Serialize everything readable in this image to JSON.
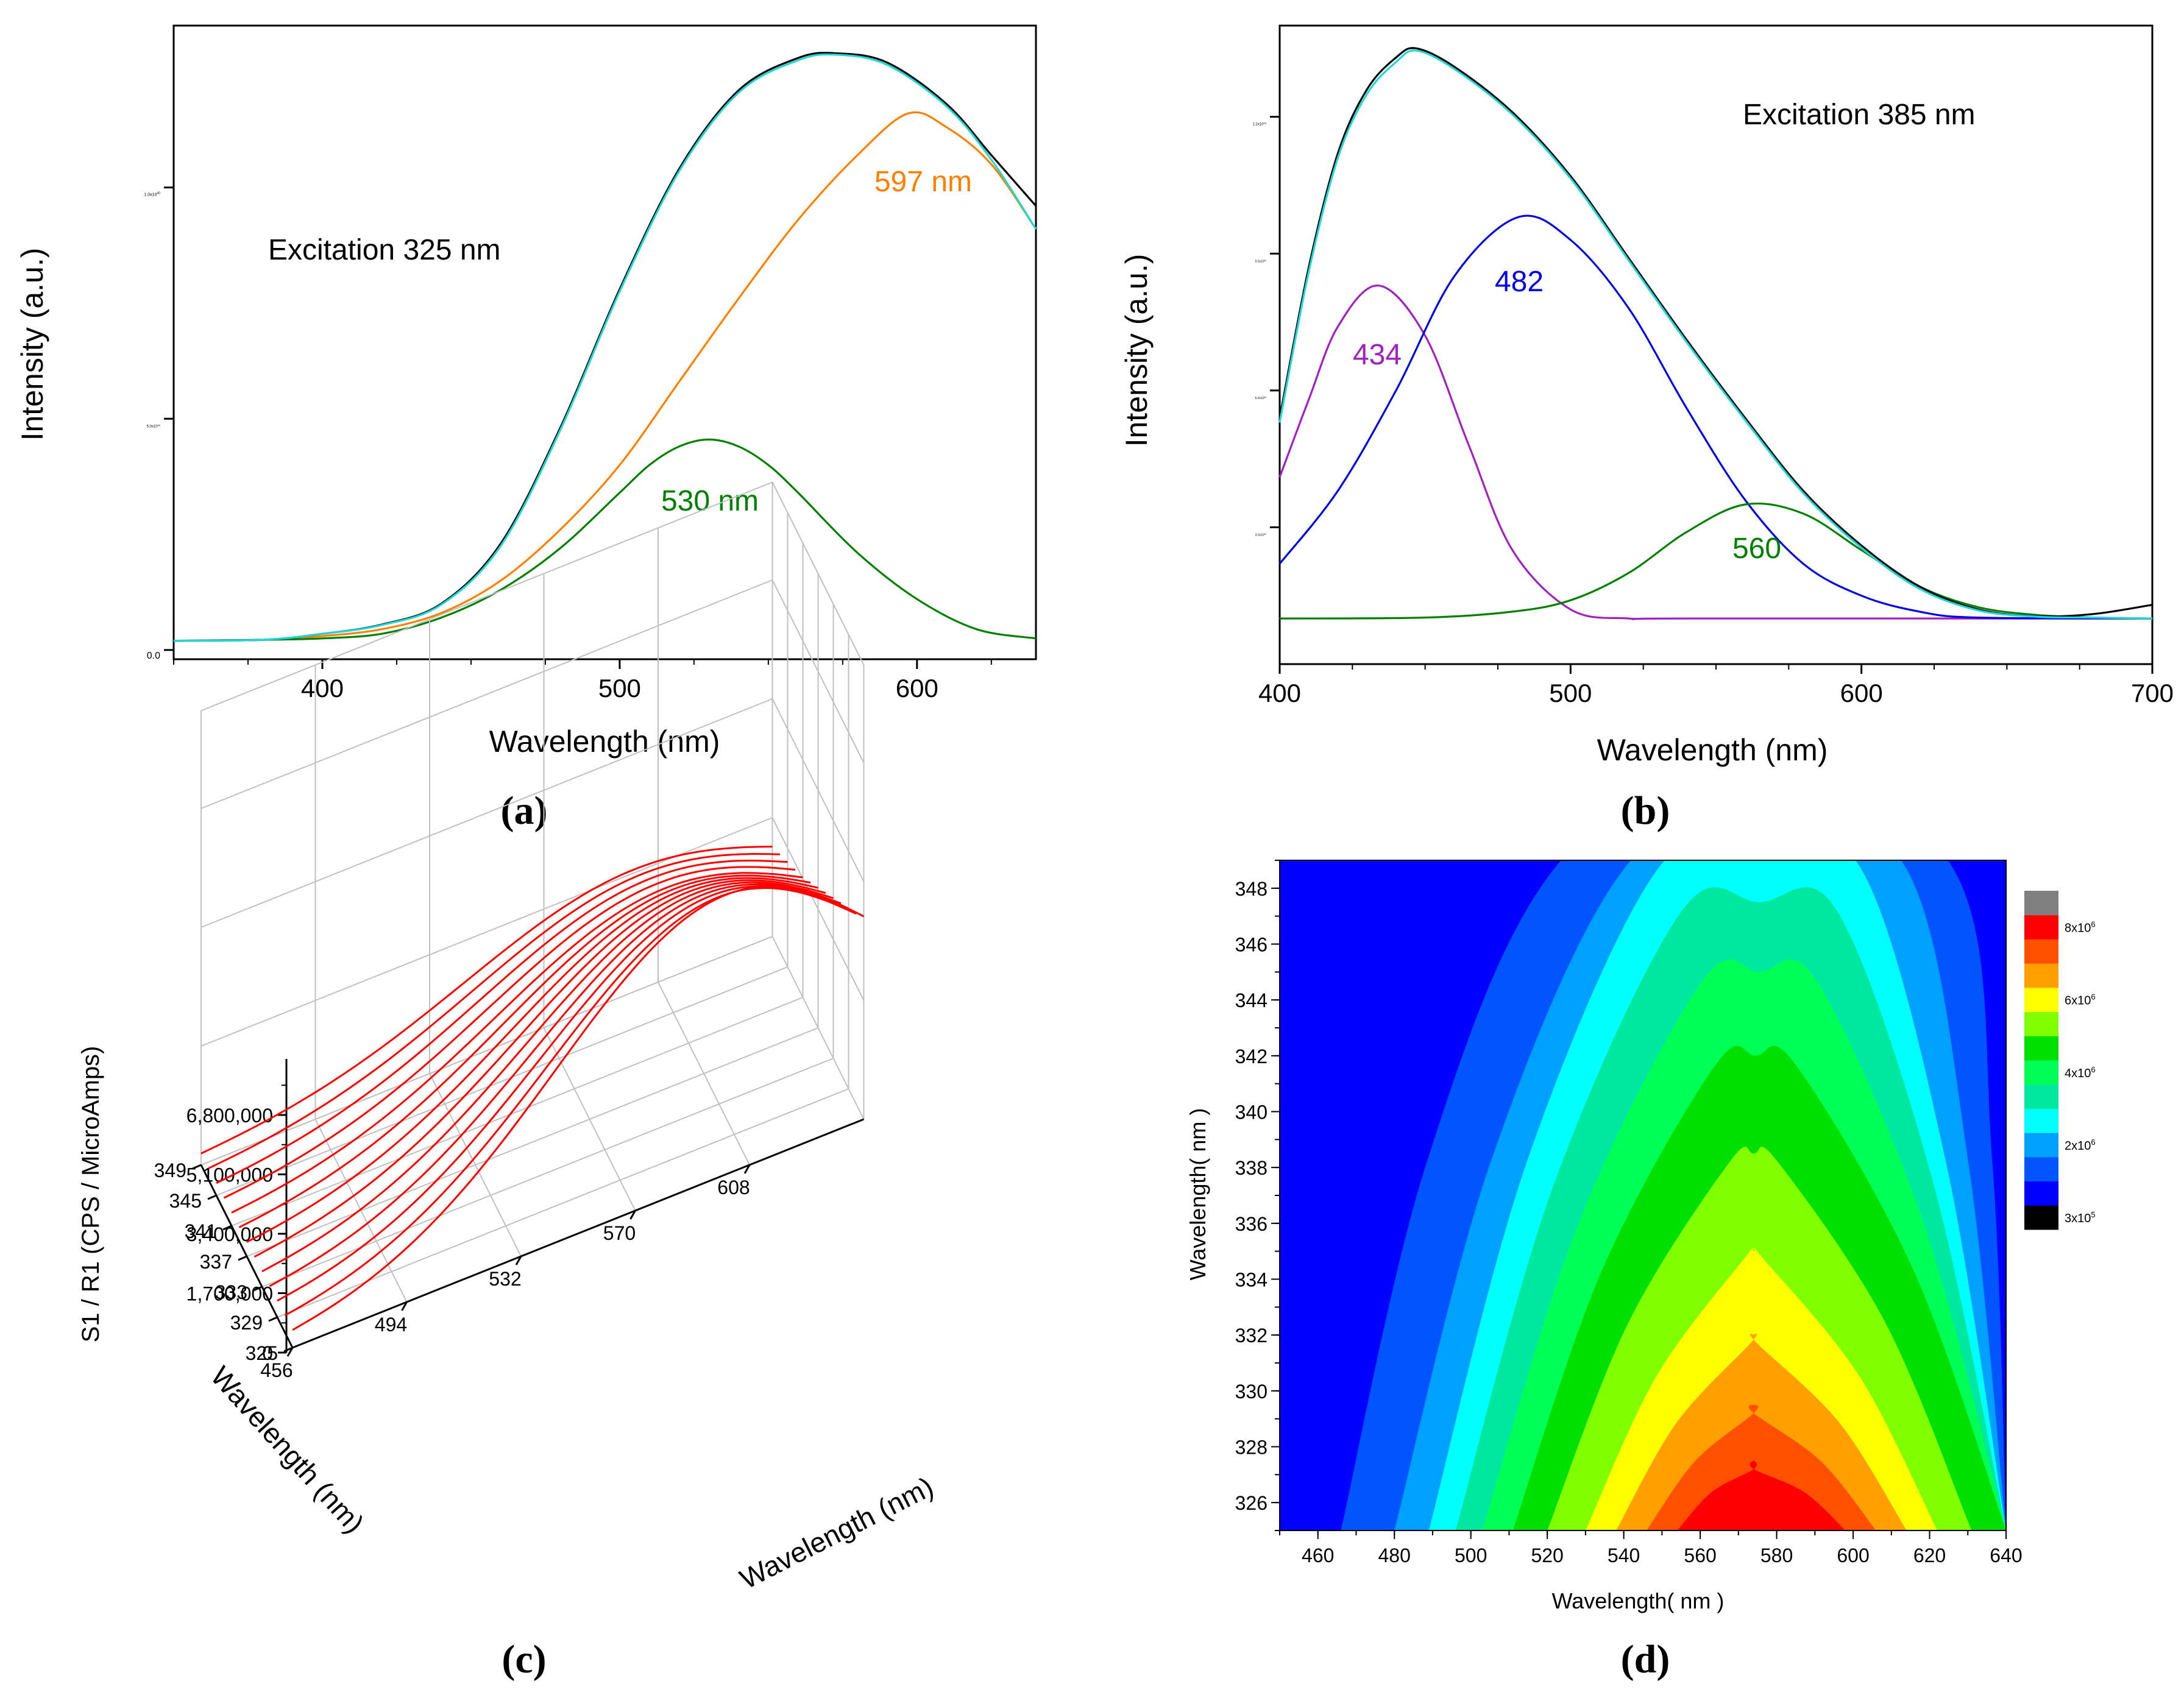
{
  "colors": {
    "black": "#000000",
    "cyan": "#1fd7d7",
    "orange": "#ff7f00",
    "green": "#008000",
    "blue": "#0000e6",
    "purple": "#a020c0",
    "red": "#ff0000",
    "grid": "#c0c0c0"
  },
  "chart_data": [
    {
      "id": "a",
      "type": "line",
      "panel_label": "(a)",
      "annotation": "Excitation 325 nm",
      "xlabel": "Wavelength (nm)",
      "ylabel": "Intensity (a.u.)",
      "xlim": [
        350,
        640
      ],
      "ylim": [
        -200000,
        13500000
      ],
      "x_ticks": [
        400,
        500,
        600
      ],
      "y_ticks": [
        {
          "value": 0,
          "label": "0.0",
          "exp": ""
        },
        {
          "value": 5000000,
          "label": "5.0x10",
          "exp": "6"
        },
        {
          "value": 10000000,
          "label": "1.0x10",
          "exp": "7"
        }
      ],
      "series": [
        {
          "label": "597 nm",
          "color": "orange",
          "x": [
            350,
            380,
            400,
            420,
            440,
            460,
            480,
            500,
            520,
            540,
            560,
            580,
            597,
            610,
            625,
            640
          ],
          "y": [
            200000,
            220000,
            300000,
            450000,
            800000,
            1500000,
            2600000,
            4000000,
            5800000,
            7600000,
            9300000,
            10700000,
            11600000,
            11300000,
            10500000,
            9100000
          ]
        },
        {
          "label": "530 nm",
          "color": "green",
          "x": [
            350,
            380,
            400,
            420,
            440,
            460,
            480,
            500,
            510,
            520,
            530,
            540,
            550,
            560,
            580,
            600,
            620,
            640
          ],
          "y": [
            200000,
            220000,
            250000,
            350000,
            700000,
            1300000,
            2200000,
            3400000,
            4000000,
            4400000,
            4550000,
            4400000,
            4000000,
            3400000,
            2100000,
            1100000,
            450000,
            250000
          ]
        },
        {
          "color": "black",
          "x": [
            350,
            380,
            400,
            420,
            440,
            460,
            480,
            500,
            520,
            540,
            560,
            573,
            590,
            610,
            625,
            640
          ],
          "y": [
            200000,
            220000,
            350000,
            550000,
            1000000,
            2300000,
            4800000,
            7800000,
            10400000,
            12100000,
            12800000,
            12900000,
            12700000,
            11800000,
            10700000,
            9600000
          ]
        },
        {
          "color": "cyan",
          "x": [
            350,
            380,
            400,
            420,
            440,
            460,
            480,
            500,
            520,
            540,
            560,
            573,
            590,
            610,
            625,
            640
          ],
          "y": [
            200000,
            220000,
            350000,
            540000,
            980000,
            2250000,
            4750000,
            7750000,
            10350000,
            12050000,
            12750000,
            12870000,
            12650000,
            11750000,
            10600000,
            9100000
          ]
        }
      ]
    },
    {
      "id": "b",
      "type": "line",
      "panel_label": "(b)",
      "annotation": "Excitation 385 nm",
      "xlabel": "Wavelength (nm)",
      "ylabel": "Intensity (a.u.)",
      "xlim": [
        400,
        700
      ],
      "ylim": [
        0,
        1400000
      ],
      "x_ticks": [
        400,
        500,
        600,
        700
      ],
      "y_ticks": [
        {
          "value": 300000,
          "label": "3.0x10",
          "exp": "5"
        },
        {
          "value": 600000,
          "label": "6.0x10",
          "exp": "5"
        },
        {
          "value": 900000,
          "label": "9.0x10",
          "exp": "5"
        },
        {
          "value": 1200000,
          "label": "1.2x10",
          "exp": "6"
        }
      ],
      "series": [
        {
          "label": "434",
          "color": "purple",
          "x": [
            400,
            410,
            420,
            434,
            450,
            465,
            480,
            500,
            520,
            540,
            700
          ],
          "y": [
            410000,
            580000,
            740000,
            830000,
            720000,
            480000,
            250000,
            120000,
            100000,
            100000,
            100000
          ]
        },
        {
          "label": "482",
          "color": "blue",
          "x": [
            400,
            420,
            440,
            460,
            482,
            500,
            520,
            540,
            560,
            580,
            600,
            620,
            640,
            700
          ],
          "y": [
            220000,
            380000,
            600000,
            850000,
            980000,
            930000,
            780000,
            560000,
            360000,
            220000,
            150000,
            115000,
            102000,
            100000
          ]
        },
        {
          "label": "560",
          "color": "green",
          "x": [
            400,
            450,
            480,
            500,
            520,
            540,
            560,
            580,
            600,
            620,
            640,
            660,
            680,
            700
          ],
          "y": [
            100000,
            102000,
            115000,
            140000,
            200000,
            290000,
            350000,
            330000,
            250000,
            170000,
            125000,
            108000,
            102000,
            100000
          ]
        },
        {
          "color": "black",
          "x": [
            400,
            410,
            420,
            430,
            440,
            447,
            460,
            480,
            500,
            520,
            540,
            560,
            580,
            600,
            620,
            640,
            660,
            680,
            700
          ],
          "y": [
            540000,
            870000,
            1120000,
            1260000,
            1330000,
            1350000,
            1310000,
            1210000,
            1070000,
            890000,
            710000,
            540000,
            380000,
            260000,
            170000,
            120000,
            105000,
            110000,
            130000
          ]
        },
        {
          "color": "cyan",
          "x": [
            400,
            410,
            420,
            430,
            440,
            447,
            460,
            480,
            500,
            520,
            540,
            560,
            580,
            600,
            620,
            640,
            660,
            680,
            700
          ],
          "y": [
            530000,
            860000,
            1110000,
            1250000,
            1320000,
            1345000,
            1305000,
            1205000,
            1065000,
            885000,
            705000,
            535000,
            375000,
            255000,
            165000,
            118000,
            104000,
            102000,
            100000
          ]
        }
      ]
    },
    {
      "id": "c",
      "type": "line",
      "panel_label": "(c)",
      "xlabel": "Wavelength (nm)",
      "ylabel_depth": "Wavelength (nm)",
      "zlabel": "S1 / R1 (CPS / MicroAmps)",
      "x_ticks": [
        456,
        494,
        532,
        570,
        608
      ],
      "depth_ticks": [
        349,
        345,
        341,
        337,
        333,
        329,
        325
      ],
      "z_ticks": [
        "0",
        "1,700,000",
        "3,400,000",
        "5,100,000",
        "6,800,000"
      ],
      "z_values": [
        0,
        1700000,
        3400000,
        5100000,
        6800000
      ],
      "line_color": "red",
      "series": [
        {
          "excitation": 349,
          "peak": 3300000
        },
        {
          "excitation": 347,
          "peak": 3600000
        },
        {
          "excitation": 345,
          "peak": 3900000
        },
        {
          "excitation": 343,
          "peak": 4200000
        },
        {
          "excitation": 341,
          "peak": 4500000
        },
        {
          "excitation": 339,
          "peak": 4900000
        },
        {
          "excitation": 337,
          "peak": 5300000
        },
        {
          "excitation": 335,
          "peak": 5700000
        },
        {
          "excitation": 333,
          "peak": 6100000
        },
        {
          "excitation": 331,
          "peak": 6500000
        },
        {
          "excitation": 329,
          "peak": 6900000
        },
        {
          "excitation": 327,
          "peak": 7300000
        },
        {
          "excitation": 325,
          "peak": 7800000
        }
      ]
    },
    {
      "id": "d",
      "type": "heatmap",
      "panel_label": "(d)",
      "xlabel": "Wavelength( nm )",
      "ylabel": "Wavelength( nm )",
      "xlim": [
        450,
        640
      ],
      "ylim": [
        325,
        349
      ],
      "x_ticks": [
        460,
        480,
        500,
        520,
        540,
        560,
        580,
        600,
        620,
        640
      ],
      "y_ticks": [
        326,
        328,
        330,
        332,
        334,
        336,
        338,
        340,
        342,
        344,
        346,
        348
      ],
      "colorbar": {
        "colors": [
          "#000000",
          "#0000ff",
          "#0055ff",
          "#00a0ff",
          "#00ffff",
          "#00e8a0",
          "#00ff55",
          "#00e000",
          "#80ff00",
          "#ffff00",
          "#ffa000",
          "#ff5000",
          "#ff0000",
          "#808080"
        ],
        "labels": [
          {
            "text": "3x10",
            "exp": "5",
            "index": 0
          },
          {
            "text": "2x10",
            "exp": "6",
            "index": 3
          },
          {
            "text": "4x10",
            "exp": "6",
            "index": 6
          },
          {
            "text": "6x10",
            "exp": "6",
            "index": 9
          },
          {
            "text": "8x10",
            "exp": "6",
            "index": 12
          }
        ]
      },
      "contour_levels": [
        {
          "color": "#0055ff",
          "left325": 466,
          "right325": 640,
          "left349": 516,
          "right349": 632
        },
        {
          "color": "#00a0ff",
          "left325": 480,
          "right325": 640,
          "left349": 536,
          "right349": 618
        },
        {
          "color": "#00ffff",
          "left325": 489,
          "right325": 640,
          "left349": 546,
          "right349": 605
        },
        {
          "color": "#00e8a0",
          "left325": 496,
          "right325": 640,
          "left349": 553,
          "right349": 598
        },
        {
          "color": "#00ff55",
          "left325": 503,
          "right325": 640,
          "left349": 559,
          "right349": 592
        },
        {
          "color": "#00e000",
          "left325": 511,
          "right325": 640,
          "left349": 563,
          "right349": 586
        },
        {
          "color": "#80ff00",
          "left325": 520,
          "right325": 631,
          "left349": 567,
          "right349": 581
        },
        {
          "color": "#ffff00",
          "left325": 530,
          "right325": 622,
          "left349": 571,
          "right349": 577
        },
        {
          "color": "#ffa000",
          "left325": 538,
          "right325": 614,
          "left349": 573,
          "right349": 575
        },
        {
          "color": "#ff5000",
          "left325": 546,
          "right325": 606,
          "left349": 574,
          "right349": 574
        },
        {
          "color": "#ff0000",
          "left325": 554,
          "right325": 598,
          "left349": 574,
          "right349": 574
        }
      ],
      "contour_tops": [
        353,
        351,
        349.5,
        347.5,
        345,
        342,
        338.5,
        335,
        332,
        329.5,
        327.5
      ],
      "background": "#0000ff"
    }
  ]
}
